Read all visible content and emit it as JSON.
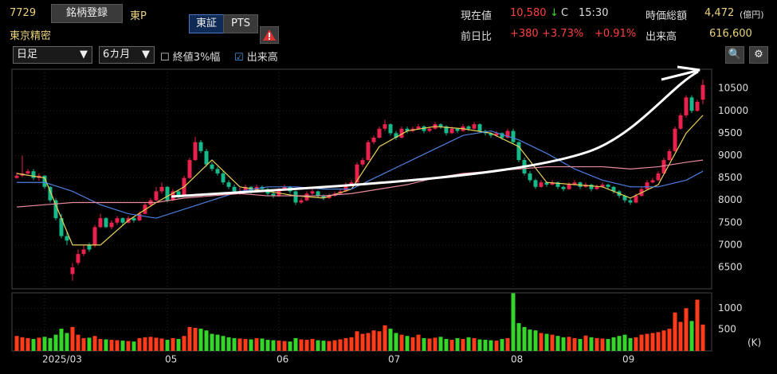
{
  "header": {
    "code": "7729",
    "register": "銘柄登録",
    "market": "東P",
    "name": "東京精密",
    "exchanges": [
      "東証",
      "PTS"
    ]
  },
  "quote": {
    "price_label": "現在値",
    "price": "10,580",
    "arrow": "↓",
    "flag": "C",
    "time": "15:30",
    "cap_label": "時価総額",
    "cap": "4,472",
    "cap_unit": "(億円)",
    "change_label": "前日比",
    "change": "+380",
    "change_pct": "+3.73%",
    "index_pct": "+0.91%",
    "volume_label": "出来高",
    "volume": "616,600"
  },
  "toolbar": {
    "period": "日足",
    "range": "6カ月",
    "option1": "終値3%幅",
    "option2": "出来高"
  },
  "chart_data": {
    "type": "candlestick",
    "up_color": "#e8214d",
    "down_color": "#16b98a",
    "ylim": [
      6020,
      10930
    ],
    "yticks": [
      6500,
      7000,
      7500,
      8000,
      8500,
      9000,
      9500,
      10000,
      10500
    ],
    "xticks": [
      {
        "value": 5,
        "label": "2025/03"
      },
      {
        "value": 27,
        "label": "05"
      },
      {
        "value": 47,
        "label": "06"
      },
      {
        "value": 67,
        "label": "07"
      },
      {
        "value": 89,
        "label": "08"
      },
      {
        "value": 109,
        "label": "09"
      }
    ],
    "candles": [
      [
        8500,
        8620,
        8480,
        8550
      ],
      [
        8550,
        9000,
        8520,
        8600
      ],
      [
        8600,
        8700,
        8580,
        8650
      ],
      [
        8650,
        8700,
        8450,
        8500
      ],
      [
        8500,
        8600,
        8430,
        8550
      ],
      [
        8550,
        8560,
        8250,
        8300
      ],
      [
        8300,
        8320,
        7950,
        8000
      ],
      [
        8000,
        8050,
        7550,
        7600
      ],
      [
        7600,
        7700,
        7150,
        7200
      ],
      [
        7200,
        7300,
        7000,
        7100
      ],
      [
        6350,
        6600,
        6200,
        6500
      ],
      [
        6600,
        6900,
        6550,
        6800
      ],
      [
        6800,
        7000,
        6750,
        6900
      ],
      [
        7000,
        7050,
        6850,
        6900
      ],
      [
        7000,
        7450,
        6950,
        7400
      ],
      [
        7400,
        7700,
        7380,
        7600
      ],
      [
        7600,
        7620,
        7380,
        7400
      ],
      [
        7400,
        7550,
        7350,
        7500
      ],
      [
        7500,
        7650,
        7450,
        7600
      ],
      [
        7600,
        7620,
        7450,
        7500
      ],
      [
        7500,
        7650,
        7480,
        7600
      ],
      [
        7600,
        7620,
        7500,
        7550
      ],
      [
        7550,
        7750,
        7530,
        7700
      ],
      [
        7700,
        7950,
        7680,
        7900
      ],
      [
        7900,
        8050,
        7850,
        8000
      ],
      [
        8000,
        8300,
        7980,
        8200
      ],
      [
        8200,
        8400,
        8150,
        8300
      ],
      [
        8300,
        8320,
        7950,
        8000
      ],
      [
        8000,
        8250,
        7980,
        8200
      ],
      [
        8200,
        8230,
        8050,
        8100
      ],
      [
        8100,
        8550,
        8080,
        8500
      ],
      [
        8500,
        8950,
        8480,
        8900
      ],
      [
        8900,
        9420,
        8880,
        9300
      ],
      [
        9300,
        9350,
        9050,
        9100
      ],
      [
        9100,
        9150,
        8750,
        8800
      ],
      [
        8800,
        8850,
        8650,
        8700
      ],
      [
        8700,
        8750,
        8550,
        8600
      ],
      [
        8600,
        8650,
        8350,
        8400
      ],
      [
        8400,
        8450,
        8250,
        8300
      ],
      [
        8300,
        8350,
        8150,
        8200
      ],
      [
        8200,
        8280,
        8120,
        8210
      ],
      [
        8200,
        8350,
        8180,
        8300
      ],
      [
        8300,
        8320,
        8150,
        8200
      ],
      [
        8200,
        8350,
        8180,
        8300
      ],
      [
        8300,
        8330,
        8200,
        8250
      ],
      [
        8250,
        8280,
        8100,
        8150
      ],
      [
        8150,
        8200,
        8050,
        8100
      ],
      [
        8100,
        8280,
        8080,
        8250
      ],
      [
        8250,
        8350,
        8220,
        8300
      ],
      [
        8300,
        8320,
        8150,
        8200
      ],
      [
        8200,
        8220,
        7900,
        7950
      ],
      [
        7950,
        8050,
        7920,
        8000
      ],
      [
        8000,
        8200,
        7980,
        8150
      ],
      [
        8150,
        8250,
        8120,
        8200
      ],
      [
        8200,
        8220,
        8050,
        8100
      ],
      [
        8100,
        8130,
        8000,
        8050
      ],
      [
        8050,
        8150,
        8030,
        8100
      ],
      [
        8100,
        8200,
        8080,
        8150
      ],
      [
        8150,
        8250,
        8120,
        8200
      ],
      [
        8200,
        8400,
        8180,
        8350
      ],
      [
        8350,
        8450,
        8320,
        8400
      ],
      [
        8400,
        8850,
        8380,
        8800
      ],
      [
        8800,
        8950,
        8750,
        8900
      ],
      [
        8900,
        9350,
        8880,
        9300
      ],
      [
        9300,
        9450,
        9250,
        9400
      ],
      [
        9400,
        9650,
        9380,
        9600
      ],
      [
        9600,
        9800,
        9550,
        9700
      ],
      [
        9700,
        9720,
        9450,
        9500
      ],
      [
        9500,
        9550,
        9350,
        9400
      ],
      [
        9400,
        9650,
        9380,
        9600
      ],
      [
        9600,
        9650,
        9500,
        9550
      ],
      [
        9550,
        9650,
        9520,
        9600
      ],
      [
        9600,
        9700,
        9580,
        9650
      ],
      [
        9650,
        9680,
        9500,
        9550
      ],
      [
        9550,
        9650,
        9520,
        9600
      ],
      [
        9600,
        9750,
        9580,
        9700
      ],
      [
        9700,
        9720,
        9600,
        9650
      ],
      [
        9650,
        9680,
        9450,
        9500
      ],
      [
        9500,
        9650,
        9480,
        9600
      ],
      [
        9600,
        9620,
        9500,
        9550
      ],
      [
        9550,
        9700,
        9530,
        9650
      ],
      [
        9650,
        9680,
        9550,
        9600
      ],
      [
        9600,
        9750,
        9580,
        9700
      ],
      [
        9700,
        9720,
        9500,
        9550
      ],
      [
        9550,
        9580,
        9450,
        9500
      ],
      [
        9500,
        9520,
        9400,
        9450
      ],
      [
        9450,
        9550,
        9420,
        9500
      ],
      [
        9500,
        9520,
        9350,
        9400
      ],
      [
        9400,
        9600,
        9380,
        9550
      ],
      [
        9550,
        9600,
        9250,
        9300
      ],
      [
        9300,
        9320,
        8850,
        8900
      ],
      [
        8900,
        8950,
        8550,
        8600
      ],
      [
        8600,
        8650,
        8400,
        8450
      ],
      [
        8450,
        8480,
        8250,
        8300
      ],
      [
        8300,
        8450,
        8280,
        8400
      ],
      [
        8400,
        8420,
        8300,
        8350
      ],
      [
        8350,
        8450,
        8330,
        8400
      ],
      [
        8400,
        8420,
        8250,
        8300
      ],
      [
        8300,
        8330,
        8200,
        8250
      ],
      [
        8250,
        8400,
        8230,
        8350
      ],
      [
        8350,
        8450,
        8330,
        8400
      ],
      [
        8400,
        8420,
        8250,
        8300
      ],
      [
        8300,
        8400,
        8280,
        8350
      ],
      [
        8350,
        8370,
        8200,
        8250
      ],
      [
        8250,
        8350,
        8230,
        8300
      ],
      [
        8300,
        8400,
        8280,
        8350
      ],
      [
        8350,
        8370,
        8250,
        8300
      ],
      [
        8300,
        8320,
        8150,
        8200
      ],
      [
        8200,
        8230,
        8050,
        8100
      ],
      [
        8100,
        8130,
        7950,
        8000
      ],
      [
        8000,
        8050,
        7900,
        7950
      ],
      [
        7950,
        8150,
        7930,
        8100
      ],
      [
        8100,
        8300,
        8080,
        8250
      ],
      [
        8250,
        8450,
        8230,
        8400
      ],
      [
        8400,
        8500,
        8380,
        8450
      ],
      [
        8450,
        8650,
        8430,
        8600
      ],
      [
        8600,
        8950,
        8580,
        8900
      ],
      [
        8900,
        9150,
        8880,
        9100
      ],
      [
        9100,
        9650,
        9080,
        9600
      ],
      [
        9600,
        9950,
        9580,
        9900
      ],
      [
        9900,
        10350,
        9850,
        10300
      ],
      [
        10300,
        10350,
        9950,
        10000
      ],
      [
        10000,
        10250,
        9980,
        10200
      ],
      [
        10250,
        10700,
        10150,
        10580
      ]
    ],
    "moving_averages": {
      "x": [
        0,
        5,
        10,
        15,
        20,
        25,
        30,
        35,
        40,
        45,
        50,
        55,
        60,
        65,
        70,
        75,
        80,
        85,
        90,
        95,
        100,
        105,
        110,
        115,
        120,
        123
      ],
      "series": [
        {
          "color": "#e8d25a",
          "values": [
            8600,
            8500,
            7000,
            7000,
            7550,
            7950,
            8300,
            8900,
            8300,
            8200,
            8100,
            8050,
            8250,
            9200,
            9550,
            9650,
            9600,
            9500,
            9200,
            8400,
            8350,
            8300,
            8050,
            8350,
            9500,
            9900
          ]
        },
        {
          "color": "#4d7fe0",
          "values": [
            8400,
            8400,
            8200,
            7900,
            7700,
            7600,
            7800,
            8000,
            8200,
            8300,
            8300,
            8250,
            8250,
            8550,
            8850,
            9150,
            9450,
            9550,
            9350,
            9050,
            8700,
            8450,
            8300,
            8300,
            8450,
            8650
          ]
        },
        {
          "color": "#e88a9c",
          "values": [
            7850,
            7900,
            7950,
            7950,
            7950,
            7950,
            8050,
            8100,
            8150,
            8100,
            8100,
            8100,
            8150,
            8250,
            8350,
            8500,
            8600,
            8650,
            8700,
            8750,
            8750,
            8750,
            8700,
            8750,
            8850,
            8900
          ]
        }
      ]
    },
    "volume": {
      "ylim": [
        0,
        1360
      ],
      "yticks": [
        500,
        1000
      ],
      "unit": "(K)",
      "up_color": "#ff3b1c",
      "down_color": "#35d62a",
      "values": [
        350,
        320,
        300,
        280,
        310,
        330,
        300,
        380,
        520,
        420,
        560,
        380,
        300,
        310,
        350,
        280,
        270,
        260,
        250,
        240,
        230,
        220,
        300,
        320,
        330,
        310,
        290,
        260,
        300,
        280,
        350,
        560,
        540,
        520,
        480,
        400,
        380,
        350,
        320,
        300,
        290,
        280,
        270,
        300,
        290,
        260,
        250,
        240,
        230,
        220,
        300,
        270,
        260,
        280,
        250,
        240,
        230,
        250,
        270,
        300,
        320,
        460,
        400,
        420,
        480,
        460,
        600,
        520,
        420,
        380,
        350,
        320,
        380,
        300,
        290,
        310,
        330,
        280,
        260,
        300,
        280,
        320,
        300,
        270,
        260,
        250,
        240,
        280,
        300,
        1350,
        650,
        560,
        500,
        480,
        420,
        400,
        380,
        350,
        320,
        330,
        300,
        280,
        360,
        320,
        300,
        290,
        280,
        320,
        350,
        380,
        300,
        320,
        380,
        400,
        420,
        440,
        480,
        520,
        900,
        680,
        1000,
        700,
        1200,
        616.6
      ]
    }
  }
}
